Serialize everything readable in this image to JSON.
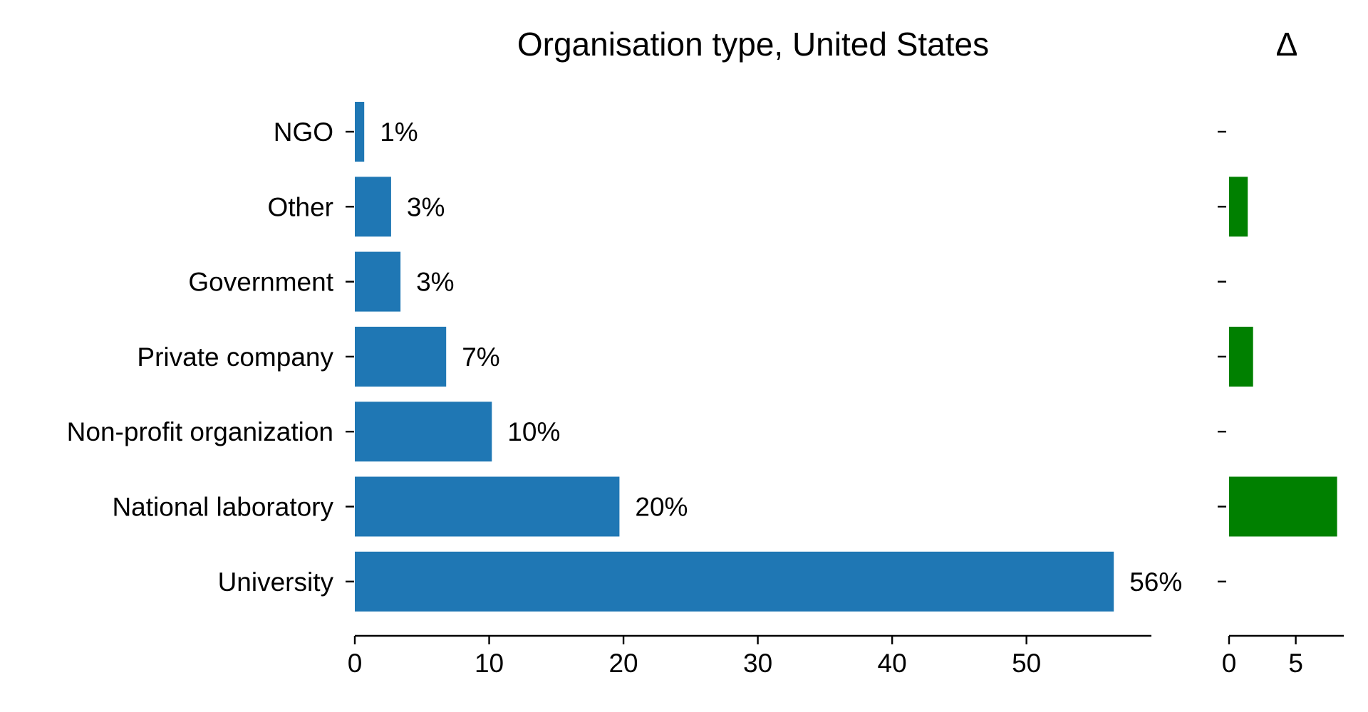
{
  "chart_data": [
    {
      "type": "bar",
      "orientation": "horizontal",
      "title": "Organisation type, United States",
      "xlabel": "",
      "ylabel": "",
      "categories": [
        "NGO",
        "Other",
        "Government",
        "Private company",
        "Non-profit organization",
        "National laboratory",
        "University"
      ],
      "values": [
        0.7,
        2.7,
        3.4,
        6.8,
        10.2,
        19.7,
        56.5
      ],
      "data_labels": [
        "1%",
        "3%",
        "3%",
        "7%",
        "10%",
        "20%",
        "56%"
      ],
      "xticks": [
        0,
        10,
        20,
        30,
        40,
        50
      ],
      "xticks_labels": [
        "0",
        "10",
        "20",
        "30",
        "40",
        "50"
      ],
      "xlim": [
        0,
        59.3
      ],
      "color": "#1f77b4",
      "grid": false,
      "legend": "none"
    },
    {
      "type": "bar",
      "orientation": "horizontal",
      "title": "Δ",
      "categories": [
        "NGO",
        "Other",
        "Government",
        "Private company",
        "Non-profit organization",
        "National laboratory",
        "University"
      ],
      "values": [
        0,
        1.4,
        0,
        1.8,
        0,
        8.1,
        0
      ],
      "xticks": [
        0,
        5
      ],
      "xticks_labels": [
        "0",
        "5"
      ],
      "xlim": [
        0,
        8.6
      ],
      "color": "#008000",
      "grid": false,
      "legend": "none"
    }
  ]
}
